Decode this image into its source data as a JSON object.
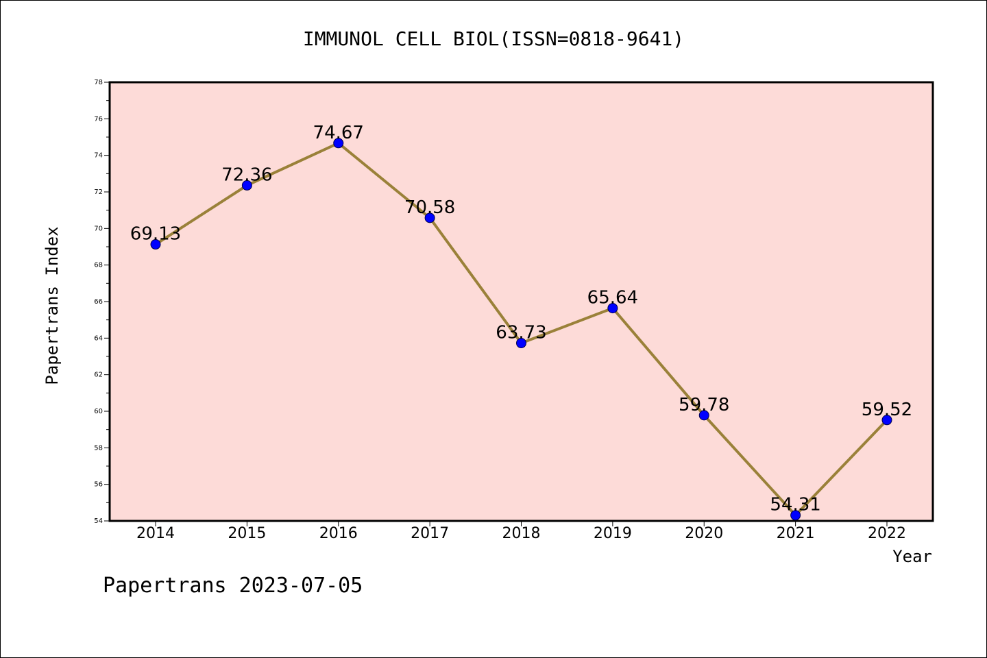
{
  "chart_data": {
    "type": "line",
    "title": "IMMUNOL CELL BIOL(ISSN=0818-9641)",
    "xlabel": "Year",
    "ylabel": "Papertrans Index",
    "categories": [
      "2014",
      "2015",
      "2016",
      "2017",
      "2018",
      "2019",
      "2020",
      "2021",
      "2022"
    ],
    "values": [
      69.13,
      72.36,
      74.67,
      70.58,
      63.73,
      65.64,
      59.78,
      54.31,
      59.52
    ],
    "data_labels": [
      "69.13",
      "72.36",
      "74.67",
      "70.58",
      "63.73",
      "65.64",
      "59.78",
      "54.31",
      "59.52"
    ],
    "ylim": [
      54,
      78
    ],
    "y_ticks": [
      "54",
      "56",
      "58",
      "60",
      "62",
      "64",
      "66",
      "68",
      "70",
      "72",
      "74",
      "76",
      "78"
    ],
    "grid": false,
    "colors": {
      "plot_background": "#fddbd8",
      "line": "#9a8139",
      "marker": "#0000ff"
    }
  },
  "footer": {
    "watermark": "Papertrans 2023-07-05"
  }
}
